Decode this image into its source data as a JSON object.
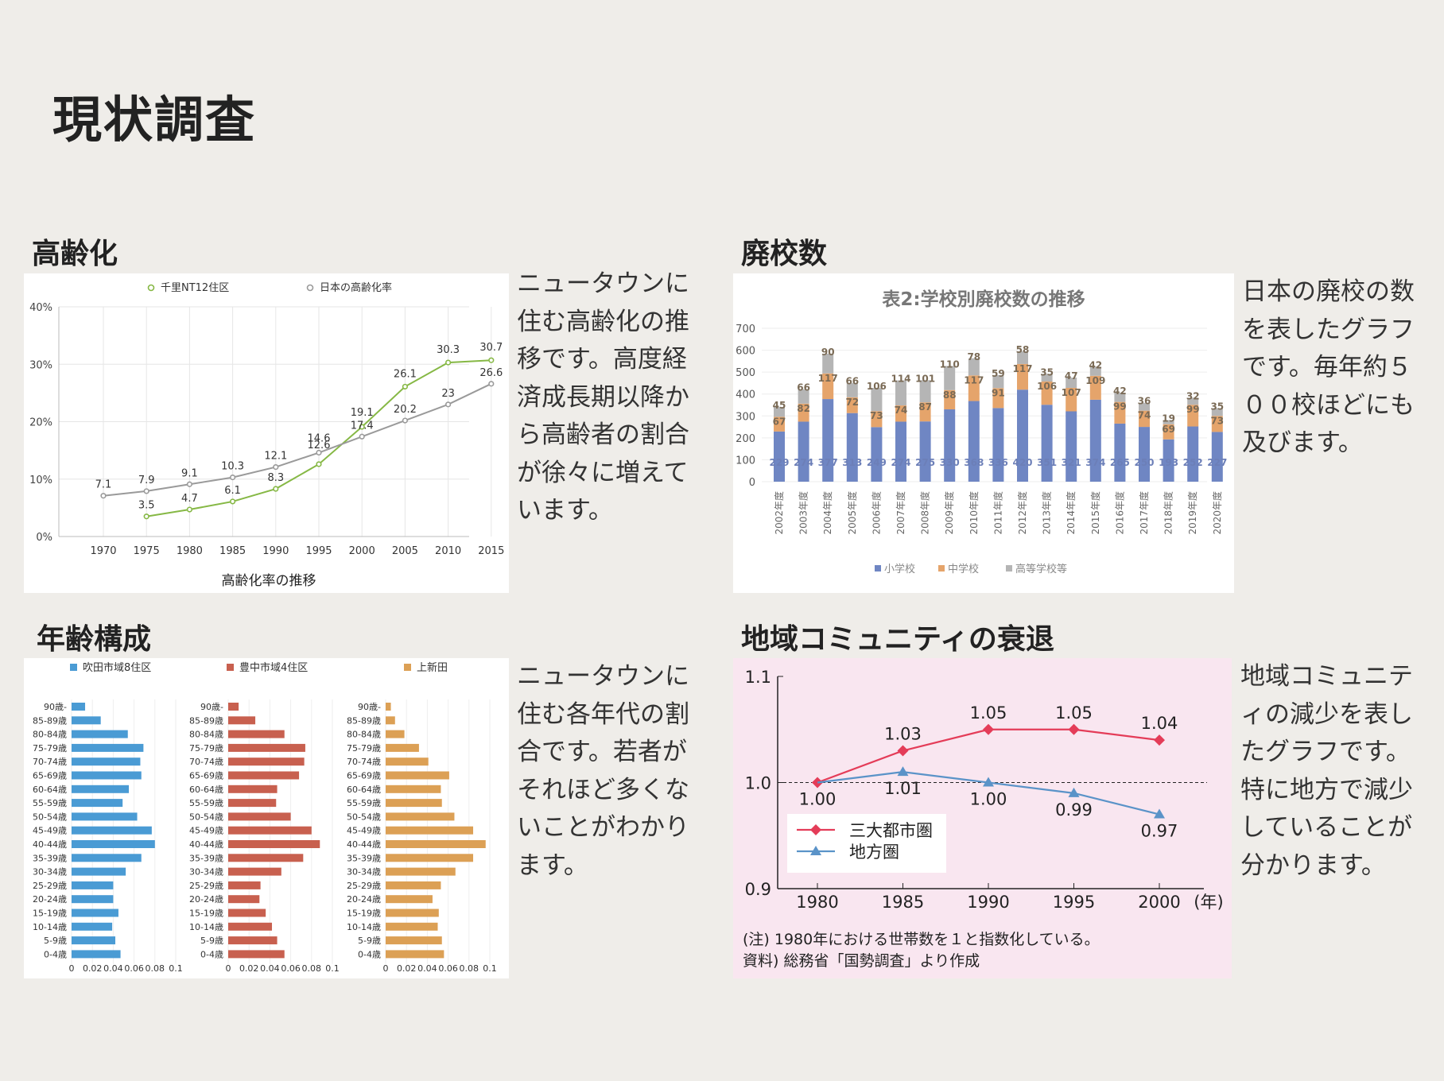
{
  "page": {
    "title": "現状調査"
  },
  "sections": {
    "aging": {
      "heading": "高齢化",
      "text": "ニュータウンに住む高齢化の推移です。高度経済成長期以降から高齢者の割合が徐々に増えています。"
    },
    "schools": {
      "heading": "廃校数",
      "text": "日本の廃校の数を表したグラフです。毎年約５００校ほどにも及びます。"
    },
    "age": {
      "heading": "年齢構成",
      "text": "ニュータウンに住む各年代の割合です。若者がそれほど多くないことがわかります。"
    },
    "community": {
      "heading": "地域コミュニティの衰退",
      "text": "地域コミュニティの減少を表したグラフです。特に地方で減少していることが分かります。"
    }
  },
  "colors": {
    "green": "#86b845",
    "gray": "#9a9a9a",
    "blue": "#4a9bd4",
    "red": "#c8604f",
    "orange": "#dca055",
    "school_blue": "#6f86c3",
    "school_orange": "#e5a46b",
    "school_gray": "#b5b5b5",
    "pink": "#f9e6f0",
    "metro": "#e43c58",
    "region": "#5a93c8"
  },
  "chart_data": [
    {
      "type": "line",
      "xlabel": "高齢化率の推移",
      "x": [
        1970,
        1975,
        1980,
        1985,
        1990,
        1995,
        2000,
        2005,
        2010,
        2015
      ],
      "ylim": [
        0,
        40
      ],
      "yticks": [
        "0%",
        "10%",
        "20%",
        "30%",
        "40%"
      ],
      "legend": "top",
      "series": [
        {
          "name": "千里NT12住区",
          "values": [
            null,
            3.5,
            4.7,
            6.1,
            8.3,
            12.6,
            19.1,
            26.1,
            30.3,
            30.7
          ],
          "labels": [
            "",
            "3.5",
            "4.7",
            "6.1",
            "8.3",
            "12.6",
            "19.1",
            "26.1",
            "30.3",
            "30.7"
          ]
        },
        {
          "name": "日本の高齢化率",
          "values": [
            7.1,
            7.9,
            9.1,
            10.3,
            12.1,
            14.6,
            17.4,
            20.2,
            23,
            26.6
          ],
          "labels": [
            "7.1",
            "7.9",
            "9.1",
            "10.3",
            "12.1",
            "14.6",
            "17.4",
            "20.2",
            "23",
            "26.6"
          ]
        }
      ]
    },
    {
      "type": "bar",
      "title": "表2:学校別廃校数の推移",
      "categories": [
        "2002年度",
        "2003年度",
        "2004年度",
        "2005年度",
        "2006年度",
        "2007年度",
        "2008年度",
        "2009年度",
        "2010年度",
        "2011年度",
        "2012年度",
        "2013年度",
        "2014年度",
        "2015年度",
        "2016年度",
        "2017年度",
        "2018年度",
        "2019年度",
        "2020年度"
      ],
      "ylim": [
        0,
        700
      ],
      "yticks": [
        "0",
        "100",
        "200",
        "300",
        "400",
        "500",
        "600",
        "700"
      ],
      "legend": "bottom",
      "series": [
        {
          "name": "小学校",
          "values": [
            229,
            274,
            377,
            313,
            249,
            274,
            275,
            330,
            368,
            336,
            420,
            351,
            321,
            374,
            265,
            250,
            193,
            252,
            227
          ]
        },
        {
          "name": "中学校",
          "values": [
            67,
            82,
            117,
            72,
            73,
            74,
            87,
            88,
            117,
            91,
            117,
            106,
            107,
            109,
            99,
            74,
            69,
            99,
            73
          ]
        },
        {
          "name": "高等学校等",
          "values": [
            45,
            66,
            90,
            66,
            106,
            114,
            101,
            110,
            78,
            59,
            58,
            35,
            47,
            42,
            42,
            36,
            19,
            32,
            35
          ]
        }
      ]
    },
    {
      "type": "bar",
      "orientation": "horizontal",
      "categories": [
        "90歳-",
        "85-89歳",
        "80-84歳",
        "75-79歳",
        "70-74歳",
        "65-69歳",
        "60-64歳",
        "55-59歳",
        "50-54歳",
        "45-49歳",
        "40-44歳",
        "35-39歳",
        "30-34歳",
        "25-29歳",
        "20-24歳",
        "15-19歳",
        "10-14歳",
        "5-9歳",
        "0-4歳"
      ],
      "xlim": [
        0,
        0.1
      ],
      "xticks": [
        "0",
        "0.02",
        "0.04",
        "0.06",
        "0.08",
        "0.1"
      ],
      "series": [
        {
          "name": "吹田市域8住区",
          "values": [
            0.013,
            0.028,
            0.054,
            0.069,
            0.066,
            0.067,
            0.055,
            0.049,
            0.063,
            0.077,
            0.08,
            0.067,
            0.052,
            0.04,
            0.04,
            0.045,
            0.039,
            0.042,
            0.047
          ]
        },
        {
          "name": "豊中市域4住区",
          "values": [
            0.01,
            0.026,
            0.054,
            0.074,
            0.073,
            0.068,
            0.047,
            0.046,
            0.06,
            0.08,
            0.088,
            0.072,
            0.051,
            0.031,
            0.03,
            0.036,
            0.042,
            0.047,
            0.054
          ]
        },
        {
          "name": "上新田",
          "values": [
            0.005,
            0.009,
            0.018,
            0.032,
            0.041,
            0.061,
            0.053,
            0.054,
            0.066,
            0.084,
            0.096,
            0.084,
            0.067,
            0.053,
            0.045,
            0.051,
            0.05,
            0.054,
            0.056
          ]
        }
      ]
    },
    {
      "type": "line",
      "x": [
        "1980",
        "1985",
        "1990",
        "1995",
        "2000"
      ],
      "x_unit": "(年)",
      "ylim": [
        0.9,
        1.1
      ],
      "yticks": [
        "0.9",
        "1.0",
        "1.1"
      ],
      "legend": "bottom-left",
      "series": [
        {
          "name": "三大都市圏",
          "values": [
            1.0,
            1.03,
            1.05,
            1.05,
            1.04
          ],
          "labels": [
            "1.00",
            "1.03",
            "1.05",
            "1.05",
            "1.04"
          ]
        },
        {
          "name": "地方圏",
          "values": [
            1.0,
            1.01,
            1.0,
            0.99,
            0.97
          ],
          "labels": [
            "",
            "1.01",
            "1.00",
            "0.99",
            "0.97"
          ]
        }
      ],
      "notes": [
        "(注) 1980年における世帯数を１と指数化している。",
        "資料) 総務省「国勢調査」より作成"
      ]
    }
  ]
}
